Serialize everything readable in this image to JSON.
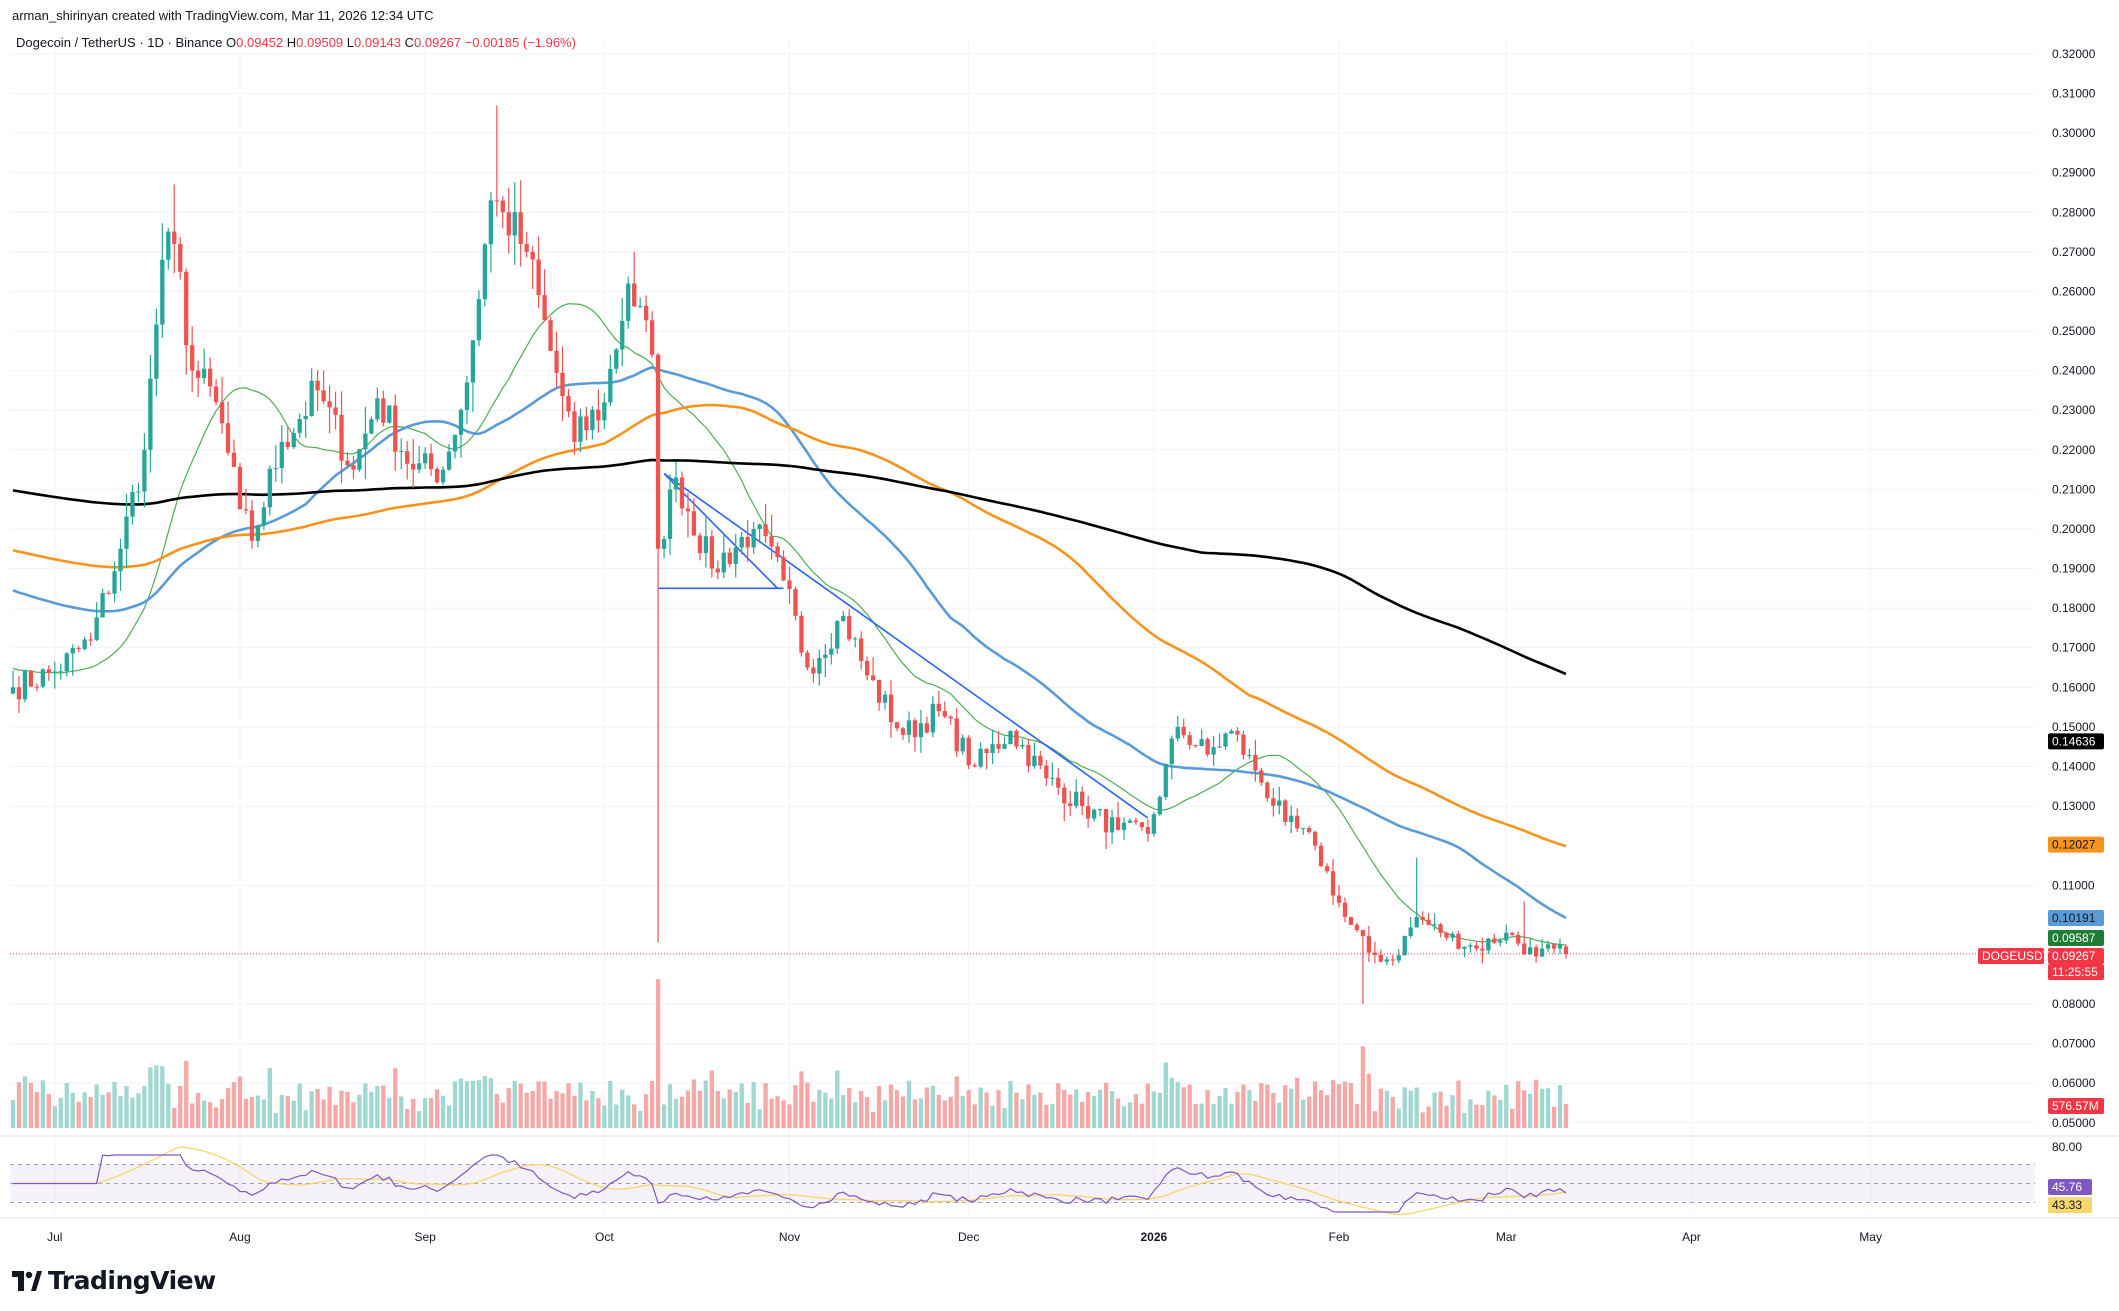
{
  "header": {
    "credit": "arman_shirinyan created with TradingView.com, Mar 11, 2026 12:34 UTC",
    "symbol_desc": "Dogecoin / TetherUS · 1D · Binance",
    "ohlc": [
      {
        "k": "O",
        "v": "0.09452"
      },
      {
        "k": "H",
        "v": "0.09509"
      },
      {
        "k": "L",
        "v": "0.09143"
      },
      {
        "k": "C",
        "v": "0.09267"
      }
    ],
    "change": "−0.00185 (−1.96%)"
  },
  "brand": "TradingView",
  "colors": {
    "up": "#26a69a",
    "down": "#ef5350",
    "vol_up": "#9fd8d1",
    "vol_down": "#f5a8a6",
    "ma20": "#4caf50",
    "ma50": "#5b9bd5",
    "ma100": "#f7941d",
    "ma200": "#000000",
    "trendline": "#2962ff",
    "rsi": "#7e57c2",
    "rsi_ma": "#f5d76e"
  },
  "chart_data": {
    "type": "candlestick",
    "symbol": "DOGEUSDT",
    "ylim": [
      0.0497,
      0.3225
    ],
    "y_ticks": [
      "0.32000",
      "0.31000",
      "0.30000",
      "0.29000",
      "0.28000",
      "0.27000",
      "0.26000",
      "0.25000",
      "0.24000",
      "0.23000",
      "0.22000",
      "0.21000",
      "0.20000",
      "0.19000",
      "0.18000",
      "0.17000",
      "0.16000",
      "0.15000",
      "0.14000",
      "0.13000",
      "0.11000",
      "0.08000",
      "0.07000",
      "0.06000",
      "0.05000"
    ],
    "x_start": "2025-06-24",
    "x_ticks": [
      {
        "label": "Jul",
        "date": "2025-07-01"
      },
      {
        "label": "Aug",
        "date": "2025-08-01"
      },
      {
        "label": "Sep",
        "date": "2025-09-01"
      },
      {
        "label": "Oct",
        "date": "2025-10-01"
      },
      {
        "label": "Nov",
        "date": "2025-11-01"
      },
      {
        "label": "Dec",
        "date": "2025-12-01"
      },
      {
        "label": "2026",
        "date": "2026-01-01"
      },
      {
        "label": "Feb",
        "date": "2026-02-01"
      },
      {
        "label": "Mar",
        "date": "2026-03-01"
      },
      {
        "label": "Apr",
        "date": "2026-04-01"
      },
      {
        "label": "May",
        "date": "2026-05-01"
      }
    ],
    "close_keyframes": [
      [
        "2025-06-24",
        0.16
      ],
      [
        "2025-07-01",
        0.164
      ],
      [
        "2025-07-07",
        0.172
      ],
      [
        "2025-07-12",
        0.195
      ],
      [
        "2025-07-16",
        0.22
      ],
      [
        "2025-07-19",
        0.268
      ],
      [
        "2025-07-21",
        0.272
      ],
      [
        "2025-07-24",
        0.24
      ],
      [
        "2025-07-28",
        0.232
      ],
      [
        "2025-08-01",
        0.205
      ],
      [
        "2025-08-03",
        0.197
      ],
      [
        "2025-08-08",
        0.222
      ],
      [
        "2025-08-14",
        0.235
      ],
      [
        "2025-08-20",
        0.215
      ],
      [
        "2025-08-24",
        0.233
      ],
      [
        "2025-08-30",
        0.215
      ],
      [
        "2025-09-04",
        0.215
      ],
      [
        "2025-09-08",
        0.237
      ],
      [
        "2025-09-12",
        0.283
      ],
      [
        "2025-09-14",
        0.28
      ],
      [
        "2025-09-18",
        0.27
      ],
      [
        "2025-09-22",
        0.245
      ],
      [
        "2025-09-26",
        0.222
      ],
      [
        "2025-10-01",
        0.232
      ],
      [
        "2025-10-05",
        0.262
      ],
      [
        "2025-10-09",
        0.244
      ],
      [
        "2025-10-10",
        0.195
      ],
      [
        "2025-10-13",
        0.213
      ],
      [
        "2025-10-19",
        0.19
      ],
      [
        "2025-10-26",
        0.2
      ],
      [
        "2025-10-31",
        0.187
      ],
      [
        "2025-11-04",
        0.165
      ],
      [
        "2025-11-10",
        0.178
      ],
      [
        "2025-11-14",
        0.163
      ],
      [
        "2025-11-20",
        0.148
      ],
      [
        "2025-11-26",
        0.154
      ],
      [
        "2025-12-02",
        0.14
      ],
      [
        "2025-12-08",
        0.149
      ],
      [
        "2025-12-14",
        0.137
      ],
      [
        "2025-12-20",
        0.13
      ],
      [
        "2025-12-26",
        0.124
      ],
      [
        "2025-12-31",
        0.123
      ],
      [
        "2026-01-05",
        0.15
      ],
      [
        "2026-01-10",
        0.143
      ],
      [
        "2026-01-14",
        0.149
      ],
      [
        "2026-01-18",
        0.139
      ],
      [
        "2026-01-23",
        0.126
      ],
      [
        "2026-01-28",
        0.12
      ],
      [
        "2026-02-02",
        0.102
      ],
      [
        "2026-02-06",
        0.093
      ],
      [
        "2026-02-10",
        0.091
      ],
      [
        "2026-02-14",
        0.102
      ],
      [
        "2026-02-18",
        0.098
      ],
      [
        "2026-02-24",
        0.094
      ],
      [
        "2026-03-01",
        0.098
      ],
      [
        "2026-03-06",
        0.092
      ],
      [
        "2026-03-09",
        0.094
      ],
      [
        "2026-03-11",
        0.09267
      ]
    ],
    "moving_averages": [
      {
        "period": 20,
        "color": "#4caf50",
        "last": "0.09587"
      },
      {
        "period": 50,
        "color": "#5b9bd5",
        "last": "0.10191"
      },
      {
        "period": 100,
        "color": "#f7941d",
        "last": "0.12027"
      },
      {
        "period": 200,
        "color": "#000000",
        "last": "0.14636"
      }
    ],
    "trendlines": [
      {
        "from": [
          "2025-10-11",
          0.214
        ],
        "to": [
          "2025-12-31",
          0.127
        ]
      },
      {
        "from": [
          "2025-10-11",
          0.214
        ],
        "to": [
          "2025-10-30",
          0.185
        ]
      },
      {
        "from": [
          "2025-10-10",
          0.185
        ],
        "to": [
          "2025-10-31",
          0.185
        ]
      }
    ],
    "current_price_line": 0.09267,
    "price_labels": [
      {
        "text": "0.14636",
        "value": 0.14636,
        "bg": "#000000",
        "fg": "#ffffff"
      },
      {
        "text": "0.12027",
        "value": 0.12027,
        "bg": "#f7941d",
        "fg": "#131722"
      },
      {
        "text": "0.10191",
        "value": 0.10191,
        "bg": "#5b9bd5",
        "fg": "#131722"
      },
      {
        "text": "0.09587",
        "value": 0.09587,
        "bg": "#1e7d32",
        "fg": "#ffffff"
      },
      {
        "text": "0.09267",
        "value": 0.09267,
        "bg": "#f23645",
        "fg": "#ffffff"
      }
    ],
    "symbol_label": "DOGEUSDT",
    "countdown": "11:25:55",
    "volume_label": "576.57M",
    "rsi": {
      "ylim": [
        20,
        80
      ],
      "upper_tick": "80.00",
      "value": "45.76",
      "ma_value": "43.33",
      "band": [
        30,
        70
      ]
    }
  }
}
